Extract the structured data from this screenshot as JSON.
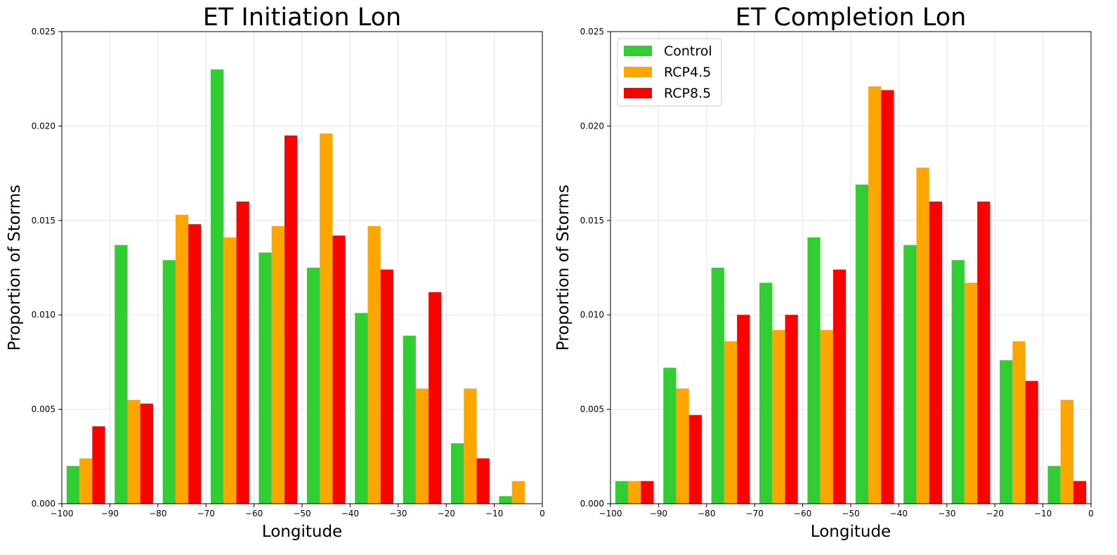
{
  "chart_data": [
    {
      "type": "bar",
      "title": "ET Initiation Lon",
      "xlabel": "Longitude",
      "ylabel": "Proportion of Storms",
      "xlim": [
        -100,
        0
      ],
      "ylim": [
        0,
        0.025
      ],
      "xticks": [
        -100,
        -90,
        -80,
        -70,
        -60,
        -50,
        -40,
        -30,
        -20,
        -10,
        0
      ],
      "xtick_labels": [
        "−100",
        "−90",
        "−80",
        "−70",
        "−60",
        "−50",
        "−40",
        "−30",
        "−20",
        "−10",
        "0"
      ],
      "yticks": [
        0,
        0.005,
        0.01,
        0.015,
        0.02,
        0.025
      ],
      "ytick_labels": [
        "0.000",
        "0.005",
        "0.010",
        "0.015",
        "0.020",
        "0.025"
      ],
      "grid": true,
      "bin_edges": [
        -100,
        -90,
        -80,
        -70,
        -60,
        -50,
        -40,
        -30,
        -20,
        -10,
        0
      ],
      "series": [
        {
          "name": "Control",
          "color": "#32cd32",
          "values": [
            0.002,
            0.0137,
            0.0129,
            0.023,
            0.0133,
            0.0125,
            0.0101,
            0.0089,
            0.0032,
            0.0004
          ]
        },
        {
          "name": "RCP4.5",
          "color": "#ffa500",
          "values": [
            0.0024,
            0.0055,
            0.0153,
            0.0141,
            0.0147,
            0.0196,
            0.0147,
            0.0061,
            0.0061,
            0.0012
          ]
        },
        {
          "name": "RCP8.5",
          "color": "#ff0000",
          "values": [
            0.0041,
            0.0053,
            0.0148,
            0.016,
            0.0195,
            0.0142,
            0.0124,
            0.0112,
            0.0024,
            0.0
          ]
        }
      ]
    },
    {
      "type": "bar",
      "title": "ET Completion Lon",
      "xlabel": "Longitude",
      "ylabel": "Proportion of Storms",
      "xlim": [
        -100,
        0
      ],
      "ylim": [
        0,
        0.025
      ],
      "xticks": [
        -100,
        -90,
        -80,
        -70,
        -60,
        -50,
        -40,
        -30,
        -20,
        -10,
        0
      ],
      "xtick_labels": [
        "−100",
        "−90",
        "−80",
        "−70",
        "−60",
        "−50",
        "−40",
        "−30",
        "−20",
        "−10",
        "0"
      ],
      "yticks": [
        0,
        0.005,
        0.01,
        0.015,
        0.02,
        0.025
      ],
      "ytick_labels": [
        "0.000",
        "0.005",
        "0.010",
        "0.015",
        "0.020",
        "0.025"
      ],
      "grid": true,
      "legend": "top-left",
      "bin_edges": [
        -100,
        -90,
        -80,
        -70,
        -60,
        -50,
        -40,
        -30,
        -20,
        -10,
        0
      ],
      "series": [
        {
          "name": "Control",
          "color": "#32cd32",
          "values": [
            0.0012,
            0.0072,
            0.0125,
            0.0117,
            0.0141,
            0.0169,
            0.0137,
            0.0129,
            0.0076,
            0.002
          ]
        },
        {
          "name": "RCP4.5",
          "color": "#ffa500",
          "values": [
            0.0012,
            0.0061,
            0.0086,
            0.0092,
            0.0092,
            0.0221,
            0.0178,
            0.0117,
            0.0086,
            0.0055
          ]
        },
        {
          "name": "RCP8.5",
          "color": "#ff0000",
          "values": [
            0.0012,
            0.0047,
            0.01,
            0.01,
            0.0124,
            0.0219,
            0.016,
            0.016,
            0.0065,
            0.0012
          ]
        }
      ]
    }
  ]
}
